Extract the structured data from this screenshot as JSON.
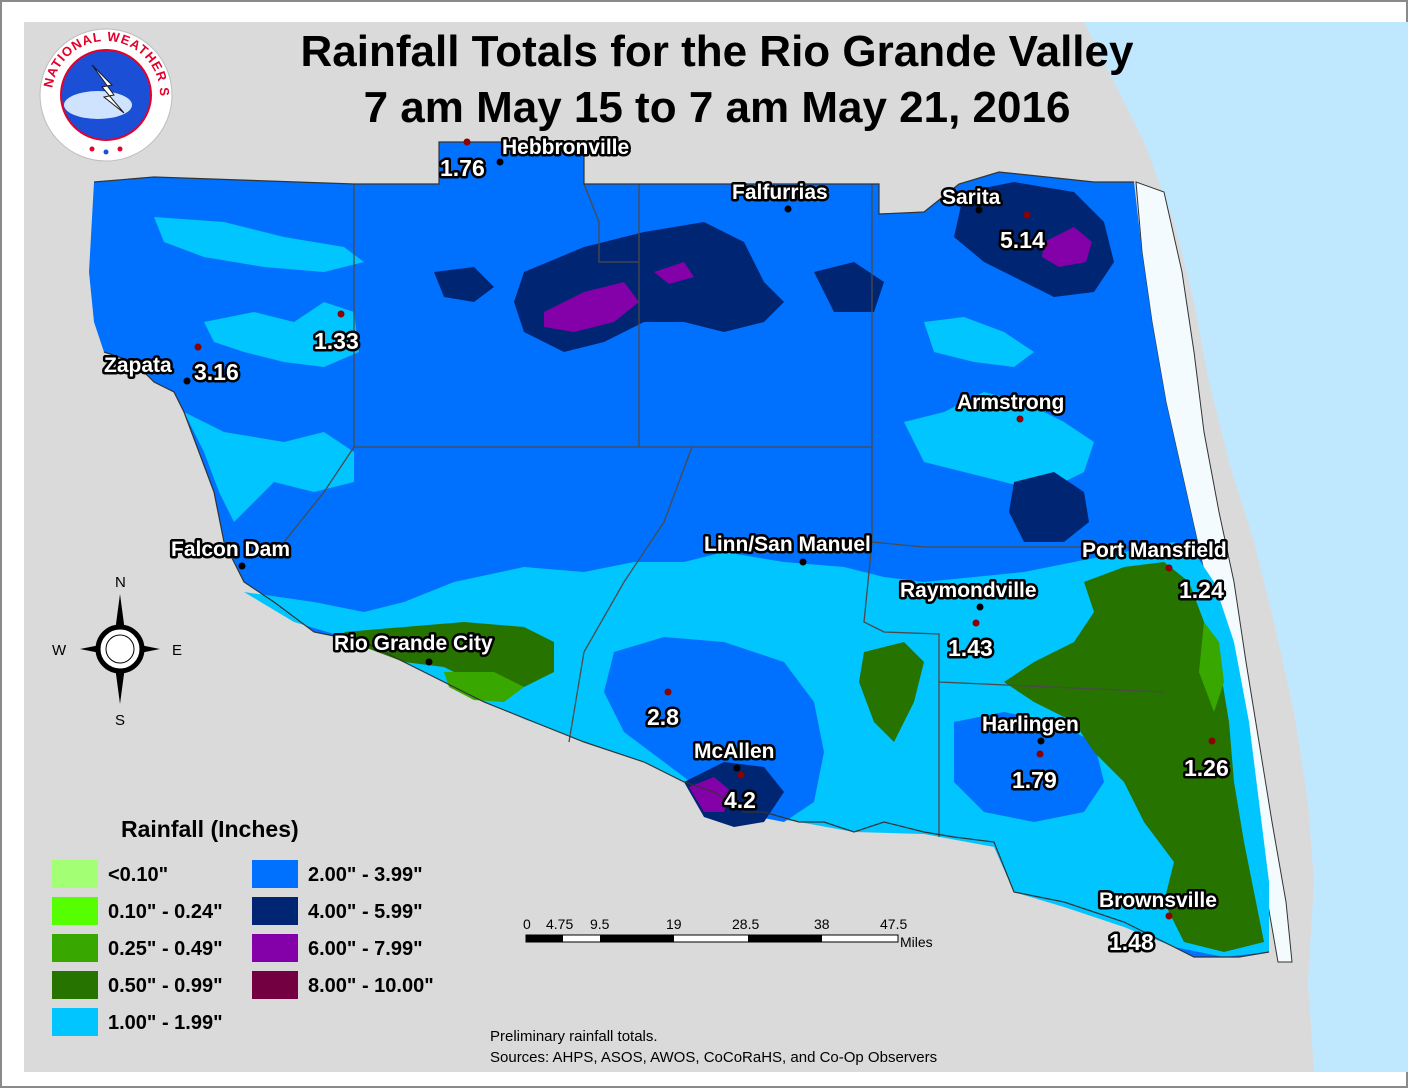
{
  "title": {
    "line1": "Rainfall Totals for the Rio Grande Valley",
    "line2": "7 am May 15 to 7 am May 21, 2016"
  },
  "logo": {
    "text": "NATIONAL WEATHER SERVICE",
    "icon": "nws-logo-icon"
  },
  "cities": [
    {
      "id": "hebbronville",
      "name": "Hebbronville"
    },
    {
      "id": "falfurrias",
      "name": "Falfurrias"
    },
    {
      "id": "sarita",
      "name": "Sarita"
    },
    {
      "id": "zapata",
      "name": "Zapata"
    },
    {
      "id": "armstrong",
      "name": "Armstrong"
    },
    {
      "id": "falcon-dam",
      "name": "Falcon Dam"
    },
    {
      "id": "linn-san-manuel",
      "name": "Linn/San Manuel"
    },
    {
      "id": "port-mansfield",
      "name": "Port Mansfield"
    },
    {
      "id": "raymondville",
      "name": "Raymondville"
    },
    {
      "id": "rio-grande-city",
      "name": "Rio Grande City"
    },
    {
      "id": "harlingen",
      "name": "Harlingen"
    },
    {
      "id": "mcallen",
      "name": "McAllen"
    },
    {
      "id": "brownsville",
      "name": "Brownsville"
    }
  ],
  "totals": [
    {
      "id": "hebbronville",
      "value": "1.76"
    },
    {
      "id": "sarita",
      "value": "5.14"
    },
    {
      "id": "zapata-north",
      "value": "1.33"
    },
    {
      "id": "zapata",
      "value": "3.16"
    },
    {
      "id": "port-mansfield",
      "value": "1.24"
    },
    {
      "id": "raymondville",
      "value": "1.43"
    },
    {
      "id": "mission",
      "value": "2.8"
    },
    {
      "id": "mcallen",
      "value": "4.2"
    },
    {
      "id": "harlingen",
      "value": "1.79"
    },
    {
      "id": "laguna",
      "value": "1.26"
    },
    {
      "id": "brownsville",
      "value": "1.48"
    }
  ],
  "legend": {
    "title": "Rainfall (Inches)",
    "items": [
      {
        "label": "<0.10\"",
        "color": "#a3ff73"
      },
      {
        "label": "0.10\" - 0.24\"",
        "color": "#55ff00"
      },
      {
        "label": "0.25\" - 0.49\"",
        "color": "#38a800"
      },
      {
        "label": "0.50\" - 0.99\"",
        "color": "#267300"
      },
      {
        "label": "1.00\" - 1.99\"",
        "color": "#00c5ff"
      },
      {
        "label": "2.00\" - 3.99\"",
        "color": "#0070ff"
      },
      {
        "label": "4.00\" - 5.99\"",
        "color": "#002673"
      },
      {
        "label": "6.00\" - 7.99\"",
        "color": "#8400a8"
      },
      {
        "label": "8.00\" - 10.00\"",
        "color": "#730040"
      }
    ]
  },
  "compass": {
    "n": "N",
    "s": "S",
    "e": "E",
    "w": "W"
  },
  "scale": {
    "ticks": [
      "0",
      "4.75",
      "9.5",
      "19",
      "28.5",
      "38",
      "47.5"
    ],
    "unit": "Miles"
  },
  "notes": {
    "line1": "Preliminary rainfall totals.",
    "line2": "Sources: AHPS, ASOS, AWOS, CoCoRaHS, and Co-Op Observers"
  },
  "colors": {
    "background": "#dadada",
    "water": "#bfe8ff",
    "county_line": "#4a4a4a"
  }
}
